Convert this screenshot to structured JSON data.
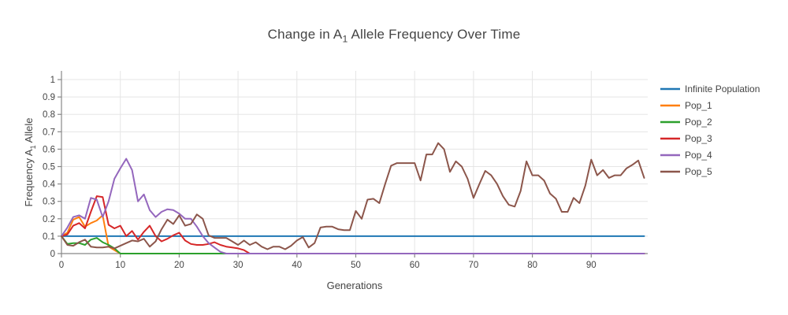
{
  "title": {
    "prefix": "Change in A",
    "sub": "1",
    "suffix": " Allele Frequency Over Time"
  },
  "axes": {
    "x": {
      "label": "Generations",
      "ticks": [
        0,
        10,
        20,
        30,
        40,
        50,
        60,
        70,
        80,
        90
      ]
    },
    "y": {
      "label_prefix": "Frequency A",
      "label_sub": "1",
      "label_suffix": " Allele",
      "ticks": [
        0,
        0.1,
        0.2,
        0.3,
        0.4,
        0.5,
        0.6,
        0.7,
        0.8,
        0.9,
        1
      ]
    }
  },
  "colors": {
    "background": "#ffffff",
    "grid": "#e5e5e5",
    "axis_line": "#888888",
    "text": "#444444",
    "infinite_population": "#1f77b4",
    "pop_1": "#ff7f0e",
    "pop_2": "#2ca02c",
    "pop_3": "#d62728",
    "pop_4": "#9467bd",
    "pop_5": "#8c564b"
  },
  "chart_data": {
    "type": "line",
    "title": "Change in A1 Allele Frequency Over Time",
    "xlabel": "Generations",
    "ylabel": "Frequency A1 Allele",
    "x_generations": "integers 0 through 99",
    "xlim": [
      0,
      99.6
    ],
    "ylim": [
      0,
      1.05
    ],
    "grid": true,
    "legend_position": "right",
    "series": [
      {
        "name": "Infinite Population",
        "color": "#1f77b4",
        "values": [
          0.1,
          0.1,
          0.1,
          0.1,
          0.1,
          0.1,
          0.1,
          0.1,
          0.1,
          0.1,
          0.1,
          0.1,
          0.1,
          0.1,
          0.1,
          0.1,
          0.1,
          0.1,
          0.1,
          0.1,
          0.1,
          0.1,
          0.1,
          0.1,
          0.1,
          0.1,
          0.1,
          0.1,
          0.1,
          0.1,
          0.1,
          0.1,
          0.1,
          0.1,
          0.1,
          0.1,
          0.1,
          0.1,
          0.1,
          0.1,
          0.1,
          0.1,
          0.1,
          0.1,
          0.1,
          0.1,
          0.1,
          0.1,
          0.1,
          0.1,
          0.1,
          0.1,
          0.1,
          0.1,
          0.1,
          0.1,
          0.1,
          0.1,
          0.1,
          0.1,
          0.1,
          0.1,
          0.1,
          0.1,
          0.1,
          0.1,
          0.1,
          0.1,
          0.1,
          0.1,
          0.1,
          0.1,
          0.1,
          0.1,
          0.1,
          0.1,
          0.1,
          0.1,
          0.1,
          0.1,
          0.1,
          0.1,
          0.1,
          0.1,
          0.1,
          0.1,
          0.1,
          0.1,
          0.1,
          0.1,
          0.1,
          0.1,
          0.1,
          0.1,
          0.1,
          0.1,
          0.1,
          0.1,
          0.1,
          0.1
        ]
      },
      {
        "name": "Pop_1",
        "color": "#ff7f0e",
        "values": [
          0.1,
          0.12,
          0.195,
          0.21,
          0.155,
          0.175,
          0.19,
          0.22,
          0.04,
          0.02,
          0,
          0,
          0,
          0,
          0,
          0,
          0,
          0,
          0,
          0,
          0,
          0,
          0,
          0,
          0,
          0,
          0,
          0,
          0,
          0,
          0,
          0,
          0,
          0,
          0,
          0,
          0,
          0,
          0,
          0,
          0,
          0,
          0,
          0,
          0,
          0,
          0,
          0,
          0,
          0,
          0,
          0,
          0,
          0,
          0,
          0,
          0,
          0,
          0,
          0,
          0,
          0,
          0,
          0,
          0,
          0,
          0,
          0,
          0,
          0,
          0,
          0,
          0,
          0,
          0,
          0,
          0,
          0,
          0,
          0,
          0,
          0,
          0,
          0,
          0,
          0,
          0,
          0,
          0,
          0,
          0,
          0,
          0,
          0,
          0,
          0,
          0,
          0,
          0,
          0
        ]
      },
      {
        "name": "Pop_2",
        "color": "#2ca02c",
        "values": [
          0.1,
          0.055,
          0.06,
          0.06,
          0.05,
          0.08,
          0.09,
          0.065,
          0.05,
          0.03,
          0,
          0,
          0,
          0,
          0,
          0,
          0,
          0,
          0,
          0,
          0,
          0,
          0,
          0,
          0,
          0,
          0,
          0,
          0,
          0,
          0,
          0,
          0,
          0,
          0,
          0,
          0,
          0,
          0,
          0,
          0,
          0,
          0,
          0,
          0,
          0,
          0,
          0,
          0,
          0,
          0,
          0,
          0,
          0,
          0,
          0,
          0,
          0,
          0,
          0,
          0,
          0,
          0,
          0,
          0,
          0,
          0,
          0,
          0,
          0,
          0,
          0,
          0,
          0,
          0,
          0,
          0,
          0,
          0,
          0,
          0,
          0,
          0,
          0,
          0,
          0,
          0,
          0,
          0,
          0,
          0,
          0,
          0,
          0,
          0,
          0,
          0,
          0,
          0,
          0
        ]
      },
      {
        "name": "Pop_3",
        "color": "#d62728",
        "values": [
          0.1,
          0.11,
          0.16,
          0.175,
          0.145,
          0.24,
          0.33,
          0.325,
          0.165,
          0.145,
          0.16,
          0.1,
          0.13,
          0.08,
          0.125,
          0.16,
          0.1,
          0.07,
          0.085,
          0.105,
          0.12,
          0.075,
          0.055,
          0.05,
          0.05,
          0.055,
          0.065,
          0.05,
          0.04,
          0.035,
          0.03,
          0.02,
          0,
          0,
          0,
          0,
          0,
          0,
          0,
          0,
          0,
          0,
          0,
          0,
          0,
          0,
          0,
          0,
          0,
          0,
          0,
          0,
          0,
          0,
          0,
          0,
          0,
          0,
          0,
          0,
          0,
          0,
          0,
          0,
          0,
          0,
          0,
          0,
          0,
          0,
          0,
          0,
          0,
          0,
          0,
          0,
          0,
          0,
          0,
          0,
          0,
          0,
          0,
          0,
          0,
          0,
          0,
          0,
          0,
          0,
          0,
          0,
          0,
          0,
          0,
          0,
          0,
          0,
          0,
          0
        ]
      },
      {
        "name": "Pop_4",
        "color": "#9467bd",
        "values": [
          0.1,
          0.15,
          0.21,
          0.22,
          0.2,
          0.32,
          0.31,
          0.21,
          0.3,
          0.43,
          0.49,
          0.545,
          0.48,
          0.3,
          0.34,
          0.25,
          0.21,
          0.24,
          0.255,
          0.25,
          0.23,
          0.2,
          0.2,
          0.155,
          0.1,
          0.06,
          0.035,
          0.01,
          0,
          0,
          0,
          0,
          0,
          0,
          0,
          0,
          0,
          0,
          0,
          0,
          0,
          0,
          0,
          0,
          0,
          0,
          0,
          0,
          0,
          0,
          0,
          0,
          0,
          0,
          0,
          0,
          0,
          0,
          0,
          0,
          0,
          0,
          0,
          0,
          0,
          0,
          0,
          0,
          0,
          0,
          0,
          0,
          0,
          0,
          0,
          0,
          0,
          0,
          0,
          0,
          0,
          0,
          0,
          0,
          0,
          0,
          0,
          0,
          0,
          0,
          0,
          0,
          0,
          0,
          0,
          0,
          0,
          0,
          0,
          0
        ]
      },
      {
        "name": "Pop_5",
        "color": "#8c564b",
        "values": [
          0.1,
          0.05,
          0.045,
          0.065,
          0.08,
          0.04,
          0.035,
          0.035,
          0.04,
          0.03,
          0.045,
          0.06,
          0.075,
          0.07,
          0.085,
          0.04,
          0.07,
          0.14,
          0.195,
          0.17,
          0.22,
          0.16,
          0.17,
          0.225,
          0.2,
          0.105,
          0.09,
          0.09,
          0.09,
          0.07,
          0.05,
          0.075,
          0.05,
          0.065,
          0.04,
          0.025,
          0.04,
          0.04,
          0.025,
          0.045,
          0.075,
          0.095,
          0.035,
          0.06,
          0.15,
          0.155,
          0.155,
          0.14,
          0.135,
          0.135,
          0.245,
          0.2,
          0.31,
          0.315,
          0.29,
          0.4,
          0.505,
          0.52,
          0.52,
          0.52,
          0.52,
          0.42,
          0.57,
          0.57,
          0.635,
          0.6,
          0.47,
          0.53,
          0.5,
          0.43,
          0.32,
          0.4,
          0.475,
          0.45,
          0.4,
          0.33,
          0.28,
          0.27,
          0.36,
          0.53,
          0.45,
          0.45,
          0.42,
          0.345,
          0.315,
          0.24,
          0.24,
          0.32,
          0.29,
          0.39,
          0.54,
          0.45,
          0.48,
          0.435,
          0.45,
          0.45,
          0.49,
          0.51,
          0.535,
          0.435
        ]
      }
    ]
  }
}
